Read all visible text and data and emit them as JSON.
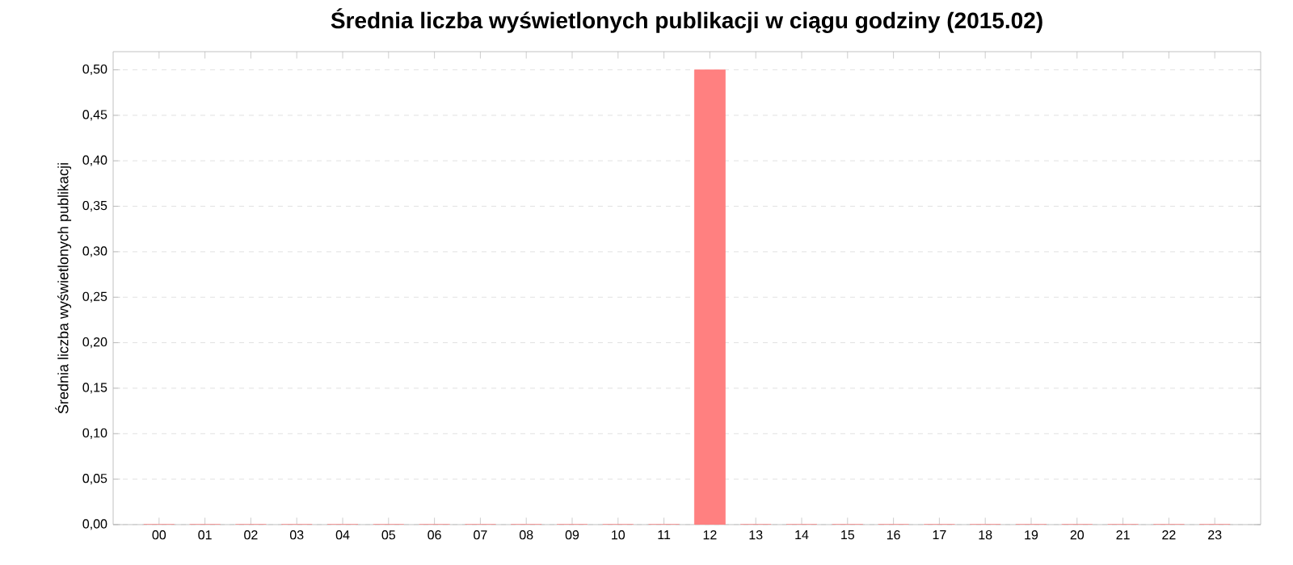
{
  "chart_data": {
    "type": "bar",
    "title": "Średnia liczba wyświetlonych publikacji w ciągu godziny (2015.02)",
    "ylabel": "Średnia liczba wyświetlonych publikacji",
    "categories": [
      "00",
      "01",
      "02",
      "03",
      "04",
      "05",
      "06",
      "07",
      "08",
      "09",
      "10",
      "11",
      "12",
      "13",
      "14",
      "15",
      "16",
      "17",
      "18",
      "19",
      "20",
      "21",
      "22",
      "23"
    ],
    "values": [
      0,
      0,
      0,
      0,
      0,
      0,
      0,
      0,
      0,
      0,
      0,
      0,
      0.5,
      0,
      0,
      0,
      0,
      0,
      0,
      0,
      0,
      0,
      0,
      0
    ],
    "color": "#ff8080",
    "ylim": [
      0,
      0.52
    ],
    "yticks": [
      {
        "value": 0,
        "label": "0,00"
      },
      {
        "value": 0.05,
        "label": "0,05"
      },
      {
        "value": 0.1,
        "label": "0,10"
      },
      {
        "value": 0.15,
        "label": "0,15"
      },
      {
        "value": 0.2,
        "label": "0,20"
      },
      {
        "value": 0.25,
        "label": "0,25"
      },
      {
        "value": 0.3,
        "label": "0,30"
      },
      {
        "value": 0.35,
        "label": "0,35"
      },
      {
        "value": 0.4,
        "label": "0,40"
      },
      {
        "value": 0.45,
        "label": "0,45"
      },
      {
        "value": 0.5,
        "label": "0,50"
      }
    ],
    "grid": "y"
  }
}
